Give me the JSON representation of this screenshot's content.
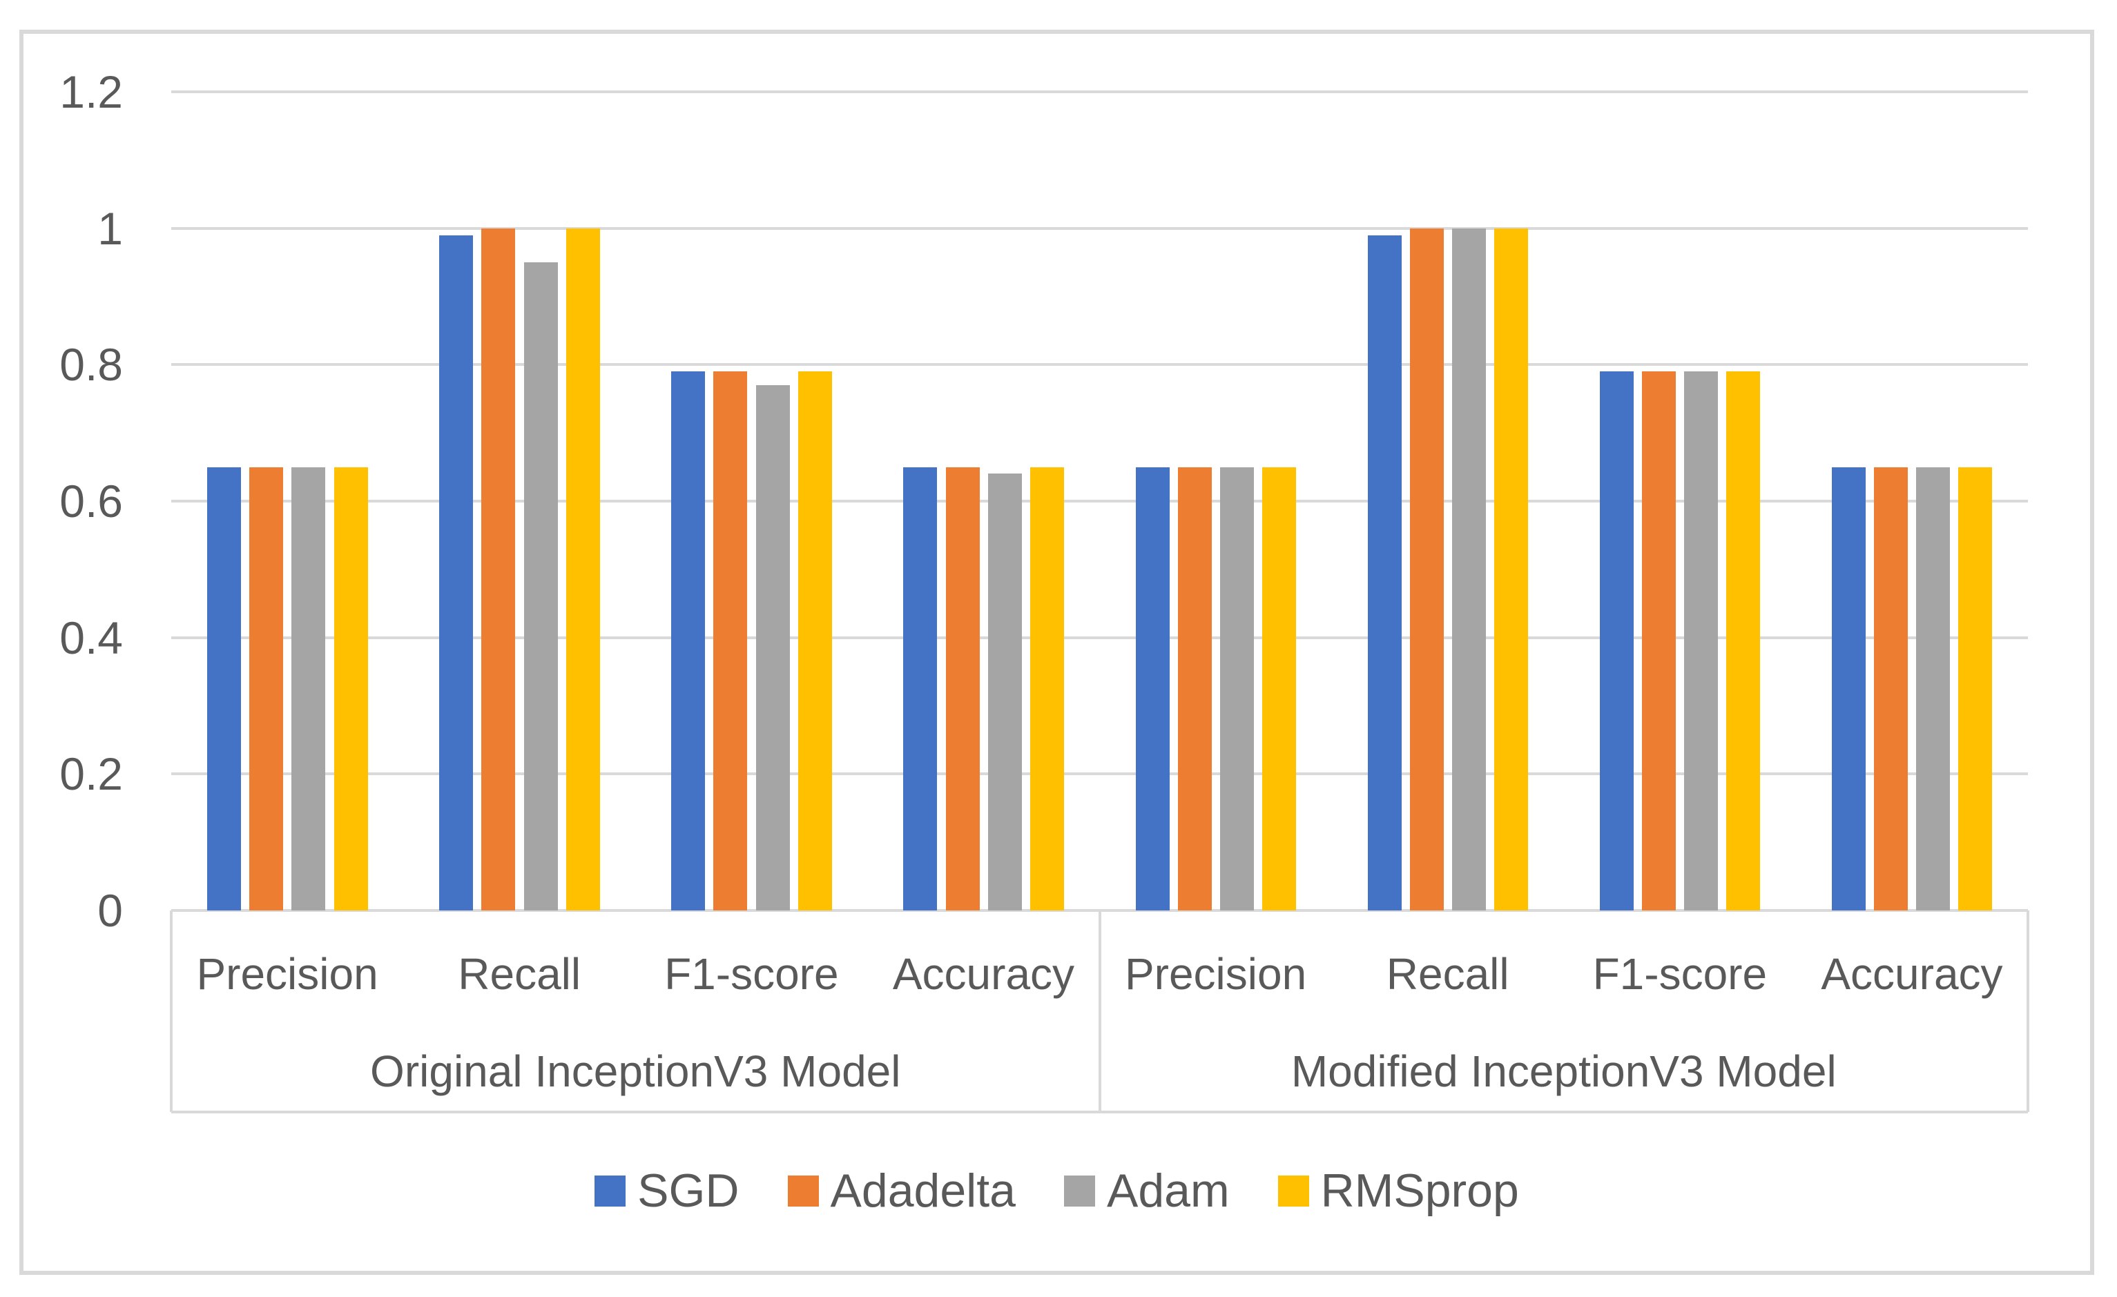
{
  "chart_data": {
    "type": "bar",
    "title": "",
    "y_axis": {
      "min": 0,
      "max": 1.2,
      "step": 0.2,
      "tick_labels": [
        "1.2",
        "1",
        "0.8",
        "0.6",
        "0.4",
        "0.2",
        "0"
      ],
      "grid": true
    },
    "x_axis": {
      "groups": [
        {
          "label": "Original InceptionV3 Model",
          "categories": [
            "Precision",
            "Recall",
            "F1-score",
            "Accuracy"
          ]
        },
        {
          "label": "Modified InceptionV3 Model",
          "categories": [
            "Precision",
            "Recall",
            "F1-score",
            "Accuracy"
          ]
        }
      ]
    },
    "series": [
      {
        "name": "SGD",
        "color": "#4472C4",
        "values": [
          [
            0.65,
            0.99,
            0.79,
            0.65
          ],
          [
            0.65,
            0.99,
            0.79,
            0.65
          ]
        ]
      },
      {
        "name": "Adadelta",
        "color": "#ED7D31",
        "values": [
          [
            0.65,
            1.0,
            0.79,
            0.65
          ],
          [
            0.65,
            1.0,
            0.79,
            0.65
          ]
        ]
      },
      {
        "name": "Adam",
        "color": "#A5A5A5",
        "values": [
          [
            0.65,
            0.95,
            0.77,
            0.64
          ],
          [
            0.65,
            1.0,
            0.79,
            0.65
          ]
        ]
      },
      {
        "name": "RMSprop",
        "color": "#FFC000",
        "values": [
          [
            0.65,
            1.0,
            0.79,
            0.65
          ],
          [
            0.65,
            1.0,
            0.79,
            0.65
          ]
        ]
      }
    ],
    "legend": {
      "position": "bottom-center",
      "items": [
        "SGD",
        "Adadelta",
        "Adam",
        "RMSprop"
      ]
    },
    "palette": {
      "text": "#595959",
      "grid": "#D9D9D9",
      "axis_line": "#D9D9D9",
      "frame": "#D9D9D9",
      "background": "#FFFFFF"
    }
  }
}
